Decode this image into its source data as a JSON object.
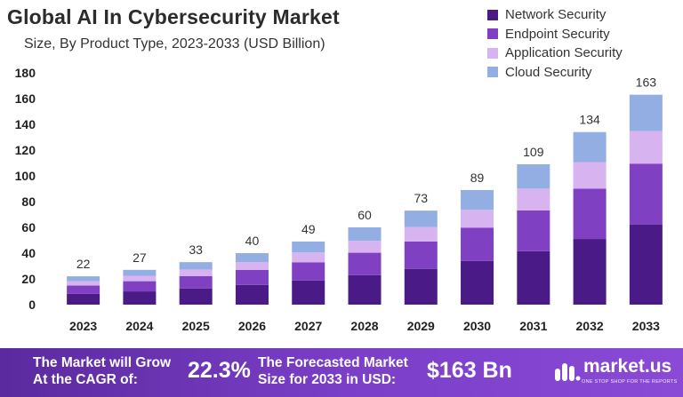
{
  "chart_data": {
    "type": "bar",
    "stacked": true,
    "title": "Global AI In Cybersecurity  Market",
    "subtitle": "Size, By Product Type, 2023-2033 (USD Billion)",
    "categories": [
      "2023",
      "2024",
      "2025",
      "2026",
      "2027",
      "2028",
      "2029",
      "2030",
      "2031",
      "2032",
      "2033"
    ],
    "totals": [
      22,
      27,
      33,
      40,
      49,
      60,
      73,
      89,
      109,
      134,
      163
    ],
    "series": [
      {
        "name": "Network Security",
        "color": "#4a1a86",
        "values": [
          8.4,
          10.3,
          12.6,
          15.3,
          18.7,
          22.9,
          27.8,
          33.9,
          41.5,
          51.0,
          62.1
        ]
      },
      {
        "name": "Endpoint Security",
        "color": "#8040c2",
        "values": [
          6.4,
          7.9,
          9.6,
          11.6,
          14.2,
          17.4,
          21.2,
          25.9,
          31.7,
          39.0,
          47.4
        ]
      },
      {
        "name": "Application Security",
        "color": "#d7b4f0",
        "values": [
          3.4,
          4.2,
          5.1,
          6.2,
          7.6,
          9.3,
          11.3,
          13.8,
          16.9,
          20.7,
          25.2
        ]
      },
      {
        "name": "Cloud Security",
        "color": "#93aee2",
        "values": [
          3.8,
          4.6,
          5.7,
          6.9,
          8.5,
          10.4,
          12.7,
          15.4,
          18.9,
          23.3,
          28.3
        ]
      }
    ],
    "ylim": [
      0,
      180
    ],
    "yticks": [
      0,
      20,
      40,
      60,
      80,
      100,
      120,
      140,
      160,
      180
    ],
    "legend_position": "top-right",
    "grid": false
  },
  "footer": {
    "cagr_text_line1": "The Market will Grow",
    "cagr_text_line2": "At the CAGR of:",
    "cagr_value": "22.3%",
    "forecast_text_line1": "The Forecasted Market",
    "forecast_text_line2": "Size for 2033 in USD:",
    "forecast_value": "$163 Bn",
    "logo_name": "market.us",
    "logo_tagline": "ONE STOP SHOP FOR THE REPORTS"
  }
}
